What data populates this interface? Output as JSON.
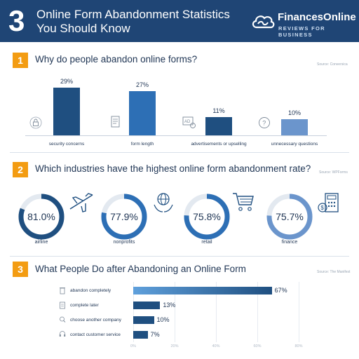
{
  "header": {
    "number": "3",
    "title": "Online Form Abandonment Statistics You Should Know",
    "logo_name": "FinancesOnline",
    "logo_tagline": "REVIEWS FOR BUSINESS"
  },
  "colors": {
    "navy": "#1f4575",
    "accent": "#f39c12",
    "bar_dark": "#1f4f80",
    "bar_mid": "#2d6fb5",
    "bar_light": "#6b95cc"
  },
  "sections": [
    {
      "number": "1",
      "title": "Why do people abandon online forms?",
      "source": "Source: Conversica"
    },
    {
      "number": "2",
      "title": "Which industries have the highest online form abandonment rate?",
      "source": "Source: WPForms"
    },
    {
      "number": "3",
      "title": "What People Do after Abandoning an Online Form",
      "source": "Source: The Manifest"
    }
  ],
  "chart_data": [
    {
      "type": "bar",
      "categories": [
        "security concerns",
        "form length",
        "advertisements or upselling",
        "unnecessary questions"
      ],
      "values": [
        29,
        27,
        11,
        10
      ],
      "value_labels": [
        "29%",
        "27%",
        "11%",
        "10%"
      ],
      "icons": [
        "lock-icon",
        "form-icon",
        "ad-icon",
        "question-icon"
      ]
    },
    {
      "type": "pie",
      "categories": [
        "airline",
        "nonprofits",
        "retail",
        "finance"
      ],
      "values": [
        81.0,
        77.9,
        75.8,
        75.7
      ],
      "value_labels": [
        "81.0%",
        "77.9%",
        "75.8%",
        "75.7%"
      ],
      "icons": [
        "airplane-icon",
        "globe-hands-icon",
        "cart-icon",
        "calculator-icon"
      ]
    },
    {
      "type": "bar",
      "orientation": "horizontal",
      "categories": [
        "abandon completely",
        "complete later",
        "choose another company",
        "contact customer service"
      ],
      "values": [
        67,
        13,
        10,
        7
      ],
      "value_labels": [
        "67%",
        "13%",
        "10%",
        "7%"
      ],
      "icons": [
        "trash-icon",
        "clipboard-icon",
        "search-icon",
        "headset-icon"
      ],
      "xlim": [
        0,
        80
      ],
      "ticks": [
        "0%",
        "20%",
        "40%",
        "60%",
        "80%"
      ]
    }
  ]
}
